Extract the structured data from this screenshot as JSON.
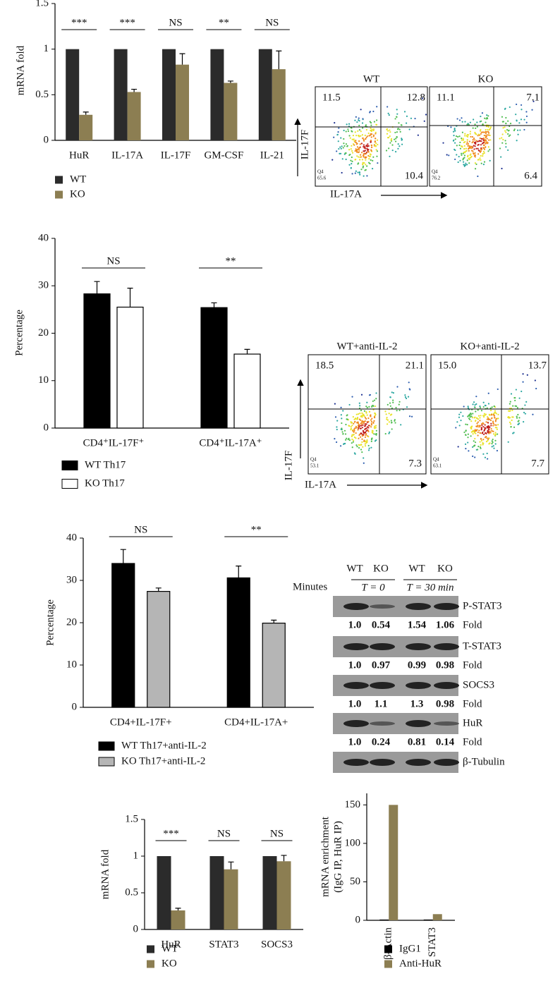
{
  "chart_data": [
    {
      "type": "bar",
      "y_label": [
        "mRNA fold"
      ],
      "categories": [
        "HuR",
        "IL-17A",
        "IL-17F",
        "GM-CSF",
        "IL-21"
      ],
      "series": [
        {
          "name": "WT",
          "color": "#2b2b2b",
          "values": [
            1,
            1,
            1,
            1,
            1
          ]
        },
        {
          "name": "KO",
          "color": "#8c7e52",
          "values": [
            0.28,
            0.53,
            0.83,
            0.63,
            0.78
          ],
          "errors": [
            0.03,
            0.03,
            0.12,
            0.02,
            0.2
          ]
        }
      ],
      "significance": [
        "***",
        "***",
        "NS",
        "**",
        "NS"
      ],
      "ylim": [
        0,
        1.5
      ],
      "yticks": [
        0,
        0.5,
        1,
        1.5
      ],
      "legend": "below"
    },
    {
      "type": "bar",
      "y_label": [
        "Percentage"
      ],
      "categories": [
        "CD4⁺IL-17F⁺",
        "CD4⁺IL-17A⁺"
      ],
      "series": [
        {
          "name": "WT Th17",
          "color": "#000000",
          "values": [
            28.3,
            25.4
          ],
          "errors": [
            2.6,
            1
          ]
        },
        {
          "name": "KO Th17",
          "color": "#ffffff",
          "values": [
            25.5,
            15.6
          ],
          "errors": [
            4,
            1
          ]
        }
      ],
      "significance": [
        "NS",
        "**"
      ],
      "ylim": [
        0,
        40
      ],
      "yticks": [
        0,
        10,
        20,
        30,
        40
      ],
      "legend": "below"
    },
    {
      "type": "bar",
      "y_label": [
        "Percentage"
      ],
      "categories": [
        "CD4+IL-17F+",
        "CD4+IL-17A+"
      ],
      "series": [
        {
          "name": "WT Th17+anti-IL-2",
          "color": "#000000",
          "values": [
            34,
            30.6
          ],
          "errors": [
            3.3,
            2.8
          ]
        },
        {
          "name": "KO Th17+anti-IL-2",
          "color": "#b5b5b5",
          "values": [
            27.4,
            19.9
          ],
          "errors": [
            0.8,
            0.7
          ]
        }
      ],
      "significance": [
        "NS",
        "**"
      ],
      "ylim": [
        0,
        40
      ],
      "yticks": [
        0,
        10,
        20,
        30,
        40
      ],
      "legend": "below"
    },
    {
      "type": "bar",
      "y_label": [
        "mRNA fold"
      ],
      "categories": [
        "HuR",
        "STAT3",
        "SOCS3"
      ],
      "series": [
        {
          "name": "WT",
          "color": "#2b2b2b",
          "values": [
            1,
            1,
            1
          ]
        },
        {
          "name": "KO",
          "color": "#8c7e52",
          "values": [
            0.26,
            0.82,
            0.93
          ],
          "errors": [
            0.03,
            0.1,
            0.08
          ]
        }
      ],
      "significance": [
        "***",
        "NS",
        "NS"
      ],
      "ylim": [
        0,
        1.5
      ],
      "yticks": [
        0,
        0.5,
        1,
        1.5
      ],
      "legend": "below"
    },
    {
      "type": "bar",
      "y_label": [
        "mRNA enrichment",
        "(IgG IP, HuR IP)"
      ],
      "categories": [
        "β-Actin",
        "STAT3"
      ],
      "series": [
        {
          "name": "IgG1",
          "color": "#000000",
          "values": [
            1,
            1
          ]
        },
        {
          "name": "Anti-HuR",
          "color": "#8c7e52",
          "values": [
            150,
            8
          ]
        }
      ],
      "ylim": [
        0,
        165
      ],
      "yticks": [
        0,
        50,
        100,
        150
      ],
      "legend": "below"
    }
  ],
  "flow_plots": [
    {
      "y_label": "IL-17F",
      "x_label": "IL-17A",
      "panels": [
        {
          "title": "WT",
          "upper_left": "11.5",
          "upper_right": "12.8",
          "lower_right": "10.4",
          "lower_left_label": "Q4",
          "lower_left": "65.6"
        },
        {
          "title": "KO",
          "upper_left": "11.1",
          "upper_right": "7.1",
          "lower_right": "6.4",
          "lower_left_label": "Q4",
          "lower_left": "76.2"
        }
      ]
    },
    {
      "y_label": "IL-17F",
      "x_label": "IL-17A",
      "panels": [
        {
          "title": "WT+anti-IL-2",
          "upper_left": "18.5",
          "upper_right": "21.1",
          "lower_right": "7.3",
          "lower_left_label": "Q4",
          "lower_left": "53.1"
        },
        {
          "title": "KO+anti-IL-2",
          "upper_left": "15.0",
          "upper_right": "13.7",
          "lower_right": "7.7",
          "lower_left_label": "Q4",
          "lower_left": "63.1"
        }
      ]
    }
  ],
  "western_blot": {
    "genotypes": [
      "WT",
      "KO",
      "WT",
      "KO"
    ],
    "time_label": "Minutes",
    "timepoints": [
      "T = 0",
      "T = 30 min"
    ],
    "fold_label": "Fold",
    "rows": [
      {
        "label": "P-STAT3",
        "fold": [
          "1.0",
          "0.54",
          "1.54",
          "1.06"
        ]
      },
      {
        "label": "T-STAT3",
        "fold": [
          "1.0",
          "0.97",
          "0.99",
          "0.98"
        ]
      },
      {
        "label": "SOCS3",
        "fold": [
          "1.0",
          "1.1",
          "1.3",
          "0.98"
        ]
      },
      {
        "label": "HuR",
        "fold": [
          "1.0",
          "0.24",
          "0.81",
          "0.14"
        ]
      },
      {
        "label": "β-Tubulin"
      }
    ]
  }
}
